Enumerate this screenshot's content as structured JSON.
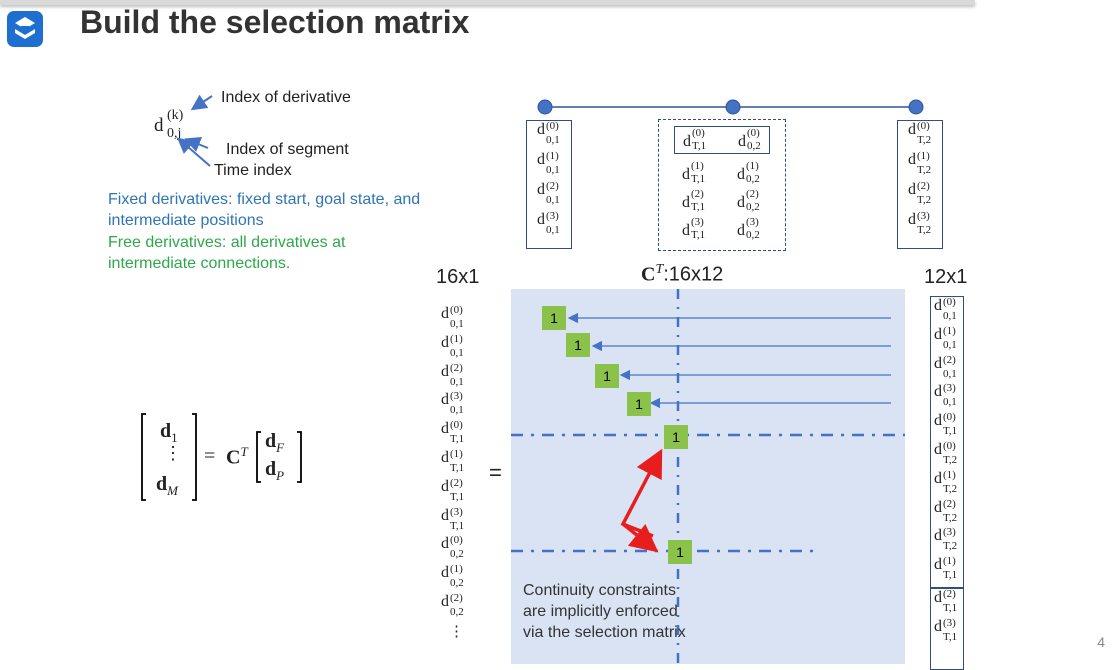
{
  "title": "Build the selection matrix",
  "page_number": "4",
  "annotation": {
    "symbol_base": "d",
    "symbol_sup": "(k)",
    "symbol_sub": "0,j",
    "index_derivative": "Index of derivative",
    "index_segment": "Index of segment",
    "time_index": "Time index"
  },
  "fixed_text": "Fixed derivatives: fixed start, goal state, and intermediate positions",
  "free_text": "Free derivatives: all derivatives at intermediate connections.",
  "headers": {
    "left": "16x1",
    "matrix_bold": "C",
    "matrix_sup": "T",
    "matrix_size": ":16x12",
    "right": "12x1"
  },
  "equals": "=",
  "equation": {
    "lhs_top": "d",
    "lhs_top_sub": "1",
    "lhs_dots": "⋮",
    "lhs_bottom": "d",
    "lhs_bottom_sub": "M",
    "eq": "=",
    "C": "C",
    "C_sup": "T",
    "rhs_top": "d",
    "rhs_top_sub": "F",
    "rhs_bottom": "d",
    "rhs_bottom_sub": "P"
  },
  "colors": {
    "blue": "#2e75b6",
    "green": "#2ea84a",
    "matrix": "#dae3f3",
    "ones": "#8bc34a",
    "arrow_red": "#e81e1e",
    "dash": "#4472c4"
  },
  "seg_left": [
    [
      "(0)",
      "0,1"
    ],
    [
      "(1)",
      "0,1"
    ],
    [
      "(2)",
      "0,1"
    ],
    [
      "(3)",
      "0,1"
    ]
  ],
  "mid_top": [
    [
      "(0)",
      "T,1",
      "(0)",
      "0,2"
    ]
  ],
  "mid_bottom": [
    [
      "(1)",
      "T,1",
      "(1)",
      "0,2"
    ],
    [
      "(2)",
      "T,1",
      "(2)",
      "0,2"
    ],
    [
      "(3)",
      "T,1",
      "(3)",
      "0,2"
    ]
  ],
  "seg_right": [
    [
      "(0)",
      "T,2"
    ],
    [
      "(1)",
      "T,2"
    ],
    [
      "(2)",
      "T,2"
    ],
    [
      "(3)",
      "T,2"
    ]
  ],
  "vec_16": [
    [
      "(0)",
      "0,1"
    ],
    [
      "(1)",
      "0,1"
    ],
    [
      "(2)",
      "0,1"
    ],
    [
      "(3)",
      "0,1"
    ],
    [
      "(0)",
      "T,1"
    ],
    [
      "(1)",
      "T,1"
    ],
    [
      "(2)",
      "T,1"
    ],
    [
      "(3)",
      "T,1"
    ],
    [
      "(0)",
      "0,2"
    ],
    [
      "(1)",
      "0,2"
    ],
    [
      "(2)",
      "0,2"
    ]
  ],
  "vec_16_dots": "⋮",
  "vec_12_fixed": [
    [
      "(0)",
      "0,1"
    ],
    [
      "(1)",
      "0,1"
    ],
    [
      "(2)",
      "0,1"
    ],
    [
      "(3)",
      "0,1"
    ],
    [
      "(0)",
      "T,1"
    ],
    [
      "(0)",
      "T,2"
    ],
    [
      "(1)",
      "T,2"
    ],
    [
      "(2)",
      "T,2"
    ],
    [
      "(3)",
      "T,2"
    ],
    [
      "(1)",
      "T,1"
    ]
  ],
  "vec_12_free": [
    [
      "(2)",
      "T,1"
    ],
    [
      "(3)",
      "T,1"
    ]
  ],
  "ones": [
    "1",
    "1",
    "1",
    "1",
    "1",
    "1"
  ],
  "continuity": [
    "Continuity constraints",
    "are implicitly enforced",
    "via the selection matrix"
  ]
}
